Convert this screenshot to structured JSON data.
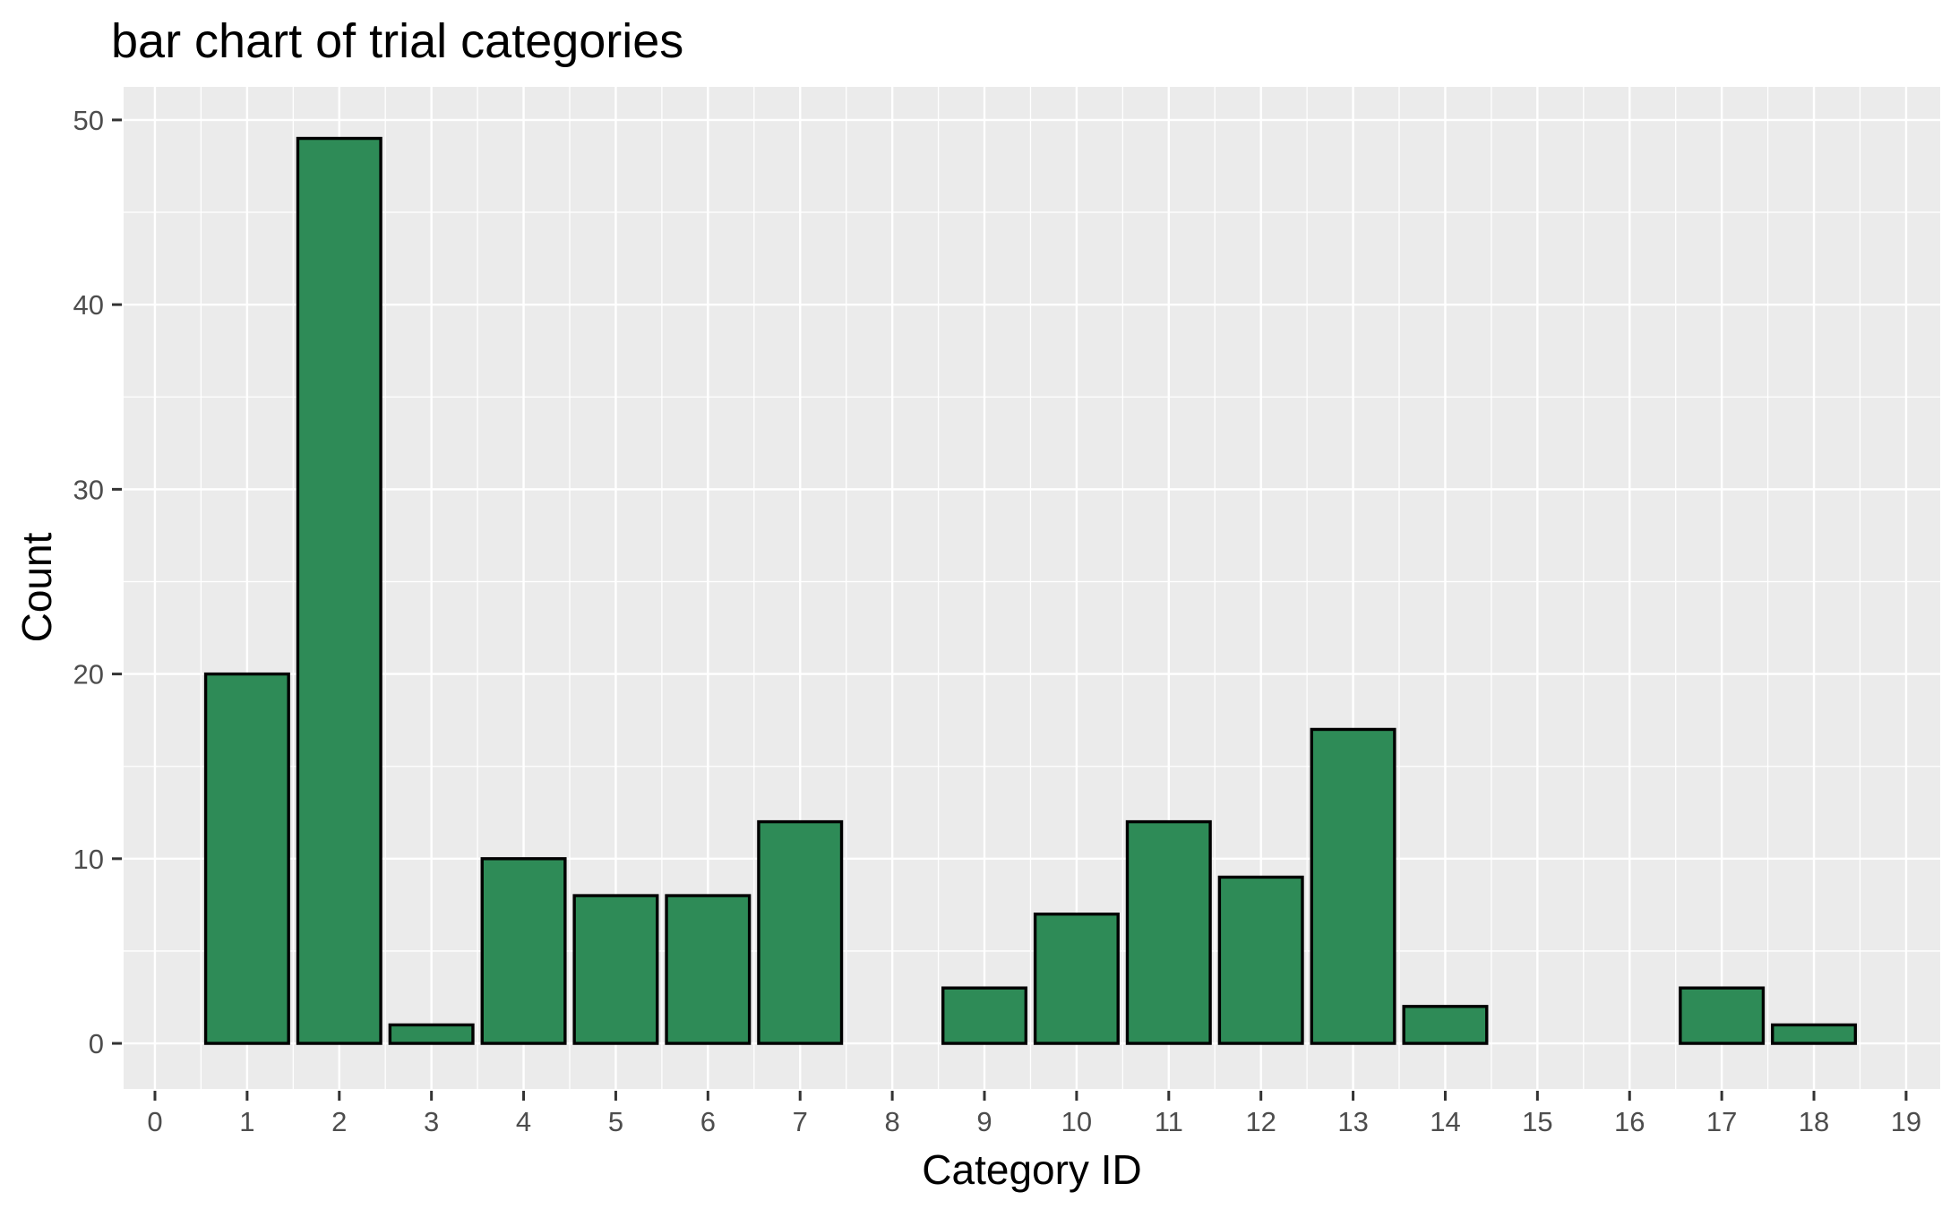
{
  "chart_data": {
    "type": "bar",
    "title": "bar chart of trial categories",
    "xlabel": "Category ID",
    "ylabel": "Count",
    "categories": [
      0,
      1,
      2,
      3,
      4,
      5,
      6,
      7,
      8,
      9,
      10,
      11,
      12,
      13,
      14,
      15,
      16,
      17,
      18,
      19
    ],
    "values": [
      0,
      20,
      49,
      1,
      10,
      8,
      8,
      12,
      0,
      3,
      7,
      12,
      9,
      17,
      2,
      0,
      0,
      3,
      1,
      0
    ],
    "bar_width": 0.9,
    "x_ticks": [
      0,
      1,
      2,
      3,
      4,
      5,
      6,
      7,
      8,
      9,
      10,
      11,
      12,
      13,
      14,
      15,
      16,
      17,
      18,
      19
    ],
    "x_tick_labels": [
      "0",
      "1",
      "2",
      "3",
      "4",
      "5",
      "6",
      "7",
      "8",
      "9",
      "10",
      "11",
      "12",
      "13",
      "14",
      "15",
      "16",
      "17",
      "18",
      "19"
    ],
    "y_ticks": [
      0,
      10,
      20,
      30,
      40,
      50
    ],
    "y_tick_labels": [
      "0",
      "10",
      "20",
      "30",
      "40",
      "50"
    ],
    "xlim": [
      -0.34,
      19.37
    ],
    "ylim": [
      -2.47,
      51.79
    ],
    "grid": {
      "major": true,
      "minor": true
    },
    "legend_position": "none",
    "colors": {
      "bar_fill": "#2e8b57",
      "bar_stroke": "#000000",
      "panel_background": "#ebebeb",
      "gridline": "#ffffff",
      "tick_mark": "#333333",
      "tick_label": "#4d4d4d",
      "axis_title": "#000000",
      "title": "#000000",
      "background": "#ffffff"
    }
  }
}
